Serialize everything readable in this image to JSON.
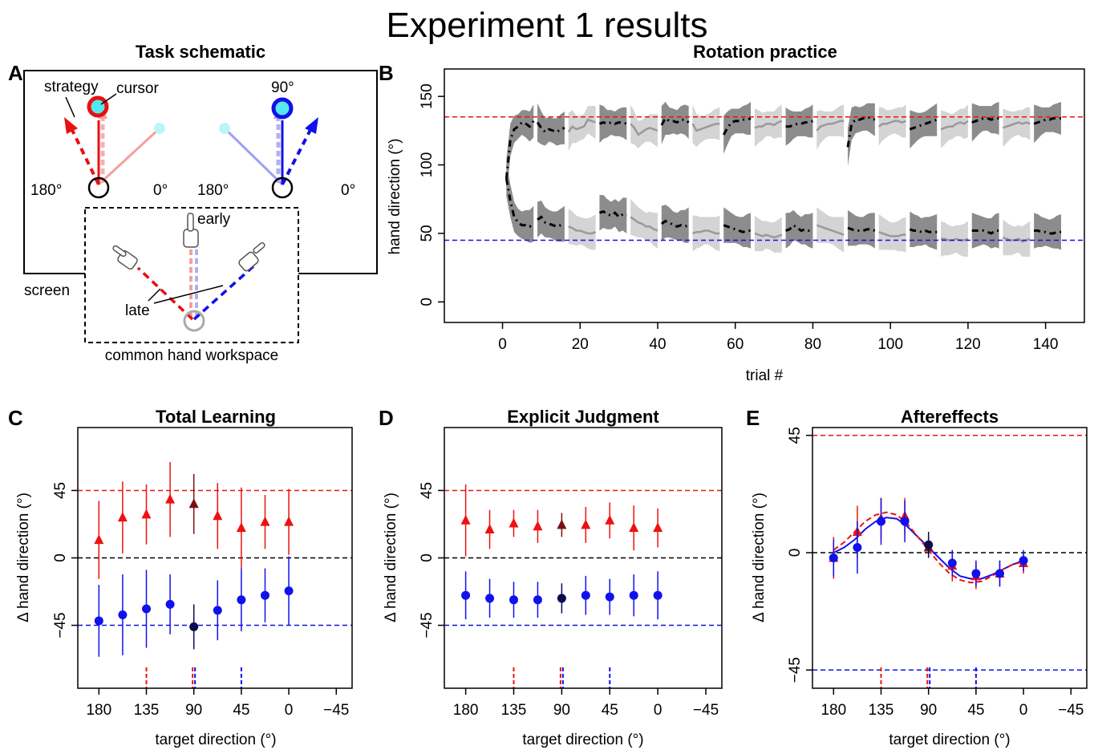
{
  "figure_title": "Experiment 1 results",
  "colors": {
    "red": "#ee1111",
    "blue": "#1111ee",
    "darkred": "#7a1010",
    "darkblue": "#0a0a50",
    "cyan": "#55e8f0"
  },
  "panel_a": {
    "letter": "A",
    "title": "Task schematic",
    "labels": {
      "strategy": "strategy",
      "cursor": "cursor",
      "deg90": "90°",
      "deg180_left": "180°",
      "deg0_left": "0°",
      "deg180_right": "180°",
      "deg0_right": "0°",
      "early": "early",
      "late": "late",
      "screen": "screen",
      "workspace": "common hand workspace"
    }
  },
  "chart_data": [
    {
      "panel": "B",
      "type": "line",
      "title": "Rotation practice",
      "xlabel": "trial #",
      "ylabel": "hand direction (°)",
      "xlim": [
        -15,
        150
      ],
      "ylim": [
        -15,
        170
      ],
      "xticks": [
        0,
        20,
        40,
        60,
        80,
        100,
        120,
        140
      ],
      "yticks": [
        0,
        50,
        100,
        150
      ],
      "reference_lines": [
        {
          "y": 135,
          "color": "red",
          "style": "dashed"
        },
        {
          "y": 45,
          "color": "blue",
          "style": "dashed"
        }
      ],
      "block_length": 8,
      "block_count": 18,
      "series": [
        {
          "values": [
            90,
            118,
            126,
            128,
            131,
            130,
            128,
            132,
            131,
            127,
            124,
            126,
            125,
            124,
            126,
            127,
            124,
            128,
            126,
            127,
            128,
            133,
            132,
            131,
            130,
            131,
            130,
            131,
            130,
            131,
            131,
            130,
            130,
            127,
            122,
            124,
            126,
            127,
            126,
            125,
            129,
            134,
            132,
            132,
            131,
            133,
            133,
            131,
            130,
            125,
            126,
            127,
            128,
            129,
            130,
            130,
            122,
            127,
            131,
            132,
            132,
            133,
            133,
            134,
            127,
            128,
            128,
            130,
            130,
            129,
            131,
            132,
            128,
            128,
            129,
            130,
            130,
            131,
            131,
            132,
            125,
            128,
            129,
            130,
            130,
            131,
            132,
            132,
            113,
            130,
            133,
            133,
            134,
            135,
            134,
            133,
            128,
            130,
            130,
            131,
            132,
            132,
            131,
            132,
            126,
            127,
            128,
            129,
            130,
            131,
            132,
            133,
            126,
            127,
            128,
            128,
            130,
            131,
            130,
            132,
            131,
            132,
            133,
            134,
            134,
            133,
            134,
            134,
            127,
            128,
            129,
            130,
            131,
            130,
            131,
            130,
            130,
            131,
            132,
            133,
            133,
            134,
            134,
            134
          ]
        },
        {
          "values": [
            90,
            74,
            62,
            58,
            56,
            56,
            55,
            57,
            60,
            62,
            58,
            57,
            56,
            55,
            56,
            57,
            55,
            54,
            52,
            52,
            51,
            50,
            50,
            51,
            65,
            66,
            64,
            63,
            65,
            62,
            64,
            63,
            62,
            60,
            58,
            57,
            55,
            55,
            53,
            52,
            57,
            59,
            58,
            56,
            55,
            56,
            55,
            56,
            50,
            51,
            51,
            52,
            52,
            51,
            50,
            50,
            56,
            55,
            54,
            53,
            52,
            51,
            52,
            52,
            50,
            49,
            48,
            49,
            48,
            47,
            48,
            49,
            52,
            53,
            56,
            54,
            52,
            53,
            52,
            52,
            56,
            55,
            54,
            53,
            52,
            51,
            50,
            49,
            54,
            53,
            52,
            52,
            52,
            53,
            53,
            52,
            51,
            50,
            49,
            48,
            48,
            48,
            49,
            49,
            53,
            52,
            52,
            51,
            52,
            51,
            51,
            51,
            46,
            46,
            45,
            45,
            46,
            45,
            45,
            46,
            52,
            52,
            52,
            52,
            51,
            50,
            52,
            52,
            47,
            46,
            45,
            45,
            46,
            44,
            45,
            46,
            52,
            52,
            51,
            51,
            50,
            50,
            51,
            51
          ]
        }
      ]
    },
    {
      "panel": "C",
      "type": "scatter",
      "title": "Total Learning",
      "xlabel": "target direction (°)",
      "ylabel": "Δ hand direction (°)",
      "xticks": [
        180,
        135,
        90,
        45,
        0,
        -45
      ],
      "yticks": [
        45,
        0,
        -45
      ],
      "xlim": [
        200,
        -60
      ],
      "ylim": [
        -87,
        87
      ],
      "reference_lines": [
        {
          "y": 45,
          "color": "red",
          "style": "dashed"
        },
        {
          "y": 0,
          "color": "black",
          "style": "dashed"
        },
        {
          "y": -45,
          "color": "blue",
          "style": "dashed"
        }
      ],
      "x": [
        180,
        157.5,
        135,
        112.5,
        90,
        67.5,
        45,
        22.5,
        0
      ],
      "series": [
        {
          "marker": "triangle",
          "color": "red",
          "values": [
            12,
            27,
            29,
            39,
            36,
            28,
            20,
            24,
            24
          ],
          "err": [
            26,
            24,
            20,
            25,
            20,
            22,
            27,
            18,
            22
          ]
        },
        {
          "marker": "circle",
          "color": "blue",
          "values": [
            -42,
            -38,
            -34,
            -31,
            -46,
            -35,
            -28,
            -25,
            -22
          ],
          "err": [
            24,
            27,
            26,
            20,
            15,
            20,
            21,
            18,
            23
          ]
        }
      ],
      "highlight_x": 90,
      "rug": [
        {
          "x": 135,
          "color": "red"
        },
        {
          "x": 90,
          "color": "red"
        },
        {
          "x": 90,
          "color": "blue"
        },
        {
          "x": 45,
          "color": "blue"
        }
      ]
    },
    {
      "panel": "D",
      "type": "scatter",
      "title": "Explicit Judgment",
      "xlabel": "target direction (°)",
      "ylabel": "Δ hand direction (°)",
      "xticks": [
        180,
        135,
        90,
        45,
        0,
        -45
      ],
      "yticks": [
        45,
        0,
        -45
      ],
      "xlim": [
        200,
        -60
      ],
      "ylim": [
        -87,
        87
      ],
      "reference_lines": [
        {
          "y": 45,
          "color": "red",
          "style": "dashed"
        },
        {
          "y": 0,
          "color": "black",
          "style": "dashed"
        },
        {
          "y": -45,
          "color": "blue",
          "style": "dashed"
        }
      ],
      "x": [
        180,
        157.5,
        135,
        112.5,
        90,
        67.5,
        45,
        22.5,
        0
      ],
      "series": [
        {
          "marker": "triangle",
          "color": "red",
          "values": [
            25,
            19,
            23,
            21,
            22,
            22,
            25,
            20,
            20
          ],
          "err": [
            24,
            13,
            9,
            11,
            8,
            12,
            12,
            15,
            13
          ]
        },
        {
          "marker": "circle",
          "color": "blue",
          "values": [
            -25,
            -27,
            -28,
            -28,
            -27,
            -25,
            -26,
            -25,
            -25
          ],
          "err": [
            16,
            13,
            12,
            12,
            10,
            13,
            12,
            14,
            16
          ]
        }
      ],
      "highlight_x": 90,
      "rug": [
        {
          "x": 135,
          "color": "red"
        },
        {
          "x": 90,
          "color": "red"
        },
        {
          "x": 90,
          "color": "blue"
        },
        {
          "x": 45,
          "color": "blue"
        }
      ]
    },
    {
      "panel": "E",
      "type": "scatter",
      "title": "Aftereffects",
      "xlabel": "target direction (°)",
      "ylabel": "Δ hand direction (°)",
      "xticks": [
        180,
        135,
        90,
        45,
        0,
        -45
      ],
      "yticks": [
        45,
        0,
        -45
      ],
      "xlim": [
        200,
        -60
      ],
      "ylim": [
        -52,
        48
      ],
      "reference_lines": [
        {
          "y": 45,
          "color": "red",
          "style": "dashed"
        },
        {
          "y": 0,
          "color": "black",
          "style": "dashed"
        },
        {
          "y": -45,
          "color": "blue",
          "style": "dashed"
        }
      ],
      "x": [
        180,
        157.5,
        135,
        112.5,
        90,
        67.5,
        45,
        22.5,
        0
      ],
      "series": [
        {
          "marker": "triangle",
          "color": "red",
          "values": [
            -2,
            8,
            13,
            14,
            2,
            -5,
            -9,
            -8,
            -4
          ],
          "err": [
            8,
            10,
            8,
            7,
            4,
            6,
            5,
            5,
            4
          ]
        },
        {
          "marker": "circle",
          "color": "blue",
          "values": [
            -2,
            2,
            12,
            12,
            3,
            -4,
            -8,
            -8,
            -3
          ],
          "err": [
            7,
            10,
            9,
            8,
            5,
            5,
            5,
            5,
            4
          ]
        }
      ],
      "fits": [
        {
          "color": "blue",
          "style": "solid",
          "x": [
            180,
            170,
            160,
            150,
            140,
            130,
            120,
            110,
            100,
            90,
            80,
            70,
            60,
            50,
            40,
            30,
            20,
            10,
            0
          ],
          "values": [
            0,
            2,
            5,
            9,
            12,
            13.5,
            13,
            10,
            6,
            2,
            -2,
            -6,
            -9,
            -10,
            -10,
            -8.5,
            -6.5,
            -4.5,
            -3
          ]
        },
        {
          "color": "red",
          "style": "dashed",
          "x": [
            180,
            170,
            160,
            150,
            140,
            130,
            120,
            110,
            100,
            90,
            80,
            70,
            60,
            50,
            40,
            30,
            20,
            10,
            0
          ],
          "values": [
            1,
            4,
            8,
            12,
            14.5,
            15.5,
            14.5,
            11,
            6,
            1,
            -4,
            -8,
            -10.5,
            -11.5,
            -11,
            -9,
            -6.5,
            -4.5,
            -3.5
          ]
        }
      ],
      "highlight_x": 90,
      "rug": [
        {
          "x": 135,
          "color": "red"
        },
        {
          "x": 90,
          "color": "red"
        },
        {
          "x": 90,
          "color": "blue"
        },
        {
          "x": 45,
          "color": "blue"
        }
      ]
    }
  ]
}
